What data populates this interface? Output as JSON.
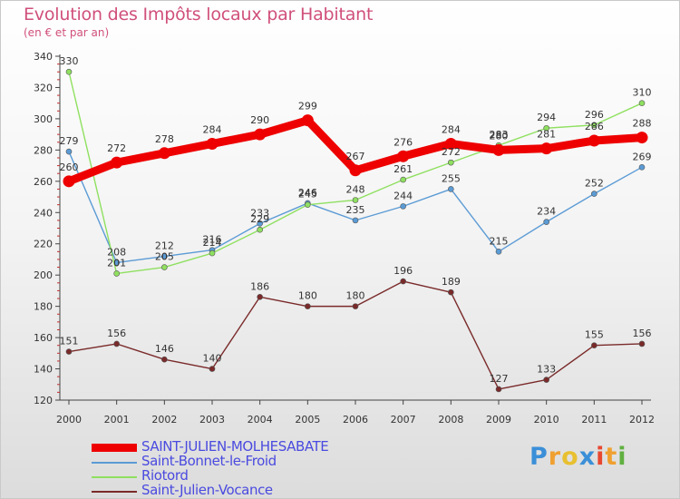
{
  "title": "Evolution des Impôts locaux par Habitant",
  "subtitle": "(en € et par an)",
  "logo": {
    "letters": [
      "P",
      "r",
      "o",
      "x",
      "i",
      "t",
      "i"
    ],
    "colors": [
      "#3b8fd8",
      "#f0a030",
      "#e8c030",
      "#3b8fd8",
      "#e84830",
      "#f0a030",
      "#60b040"
    ]
  },
  "chart_data": {
    "type": "line",
    "x": [
      "2000",
      "2001",
      "2002",
      "2003",
      "2004",
      "2005",
      "2006",
      "2007",
      "2008",
      "2009",
      "2010",
      "2011",
      "2012"
    ],
    "ylim": [
      120,
      340
    ],
    "yticks": [
      "120",
      "140",
      "160",
      "180",
      "200",
      "220",
      "240",
      "260",
      "280",
      "300",
      "320",
      "340"
    ],
    "grid": false,
    "legend_placement": "bottom-left",
    "series": [
      {
        "name": "SAINT-JULIEN-MOLHESABATE",
        "color": "#ee0000",
        "width": 9,
        "values": [
          260,
          272,
          278,
          284,
          290,
          299,
          267,
          276,
          284,
          280,
          281,
          286,
          288
        ],
        "labels": [
          "260",
          "272",
          "278",
          "284",
          "290",
          "299",
          "267",
          "276",
          "284",
          "280",
          "281",
          "286",
          "288"
        ]
      },
      {
        "name": "Saint-Bonnet-le-Froid",
        "color": "#5b9bd5",
        "width": 1.4,
        "values": [
          279,
          208,
          212,
          216,
          233,
          246,
          235,
          244,
          255,
          215,
          234,
          252,
          269
        ],
        "labels": [
          "279",
          "208",
          "212",
          "216",
          "233",
          "246",
          "235",
          "244",
          "255",
          "215",
          "234",
          "252",
          "269"
        ]
      },
      {
        "name": "Riotord",
        "color": "#8fe060",
        "width": 1.4,
        "values": [
          330,
          201,
          205,
          214,
          229,
          245,
          248,
          261,
          272,
          283,
          294,
          296,
          310
        ],
        "labels": [
          "330",
          "201",
          "205",
          "214",
          "229",
          "245",
          "248",
          "261",
          "272",
          "283",
          "294",
          "296",
          "310"
        ]
      },
      {
        "name": "Saint-Julien-Vocance",
        "color": "#7a2a2a",
        "width": 1.4,
        "values": [
          151,
          156,
          146,
          140,
          186,
          180,
          180,
          196,
          189,
          127,
          133,
          155,
          156
        ],
        "labels": [
          "151",
          "156",
          "146",
          "140",
          "186",
          "180",
          "180",
          "196",
          "189",
          "127",
          "133",
          "155",
          "156"
        ]
      }
    ]
  }
}
